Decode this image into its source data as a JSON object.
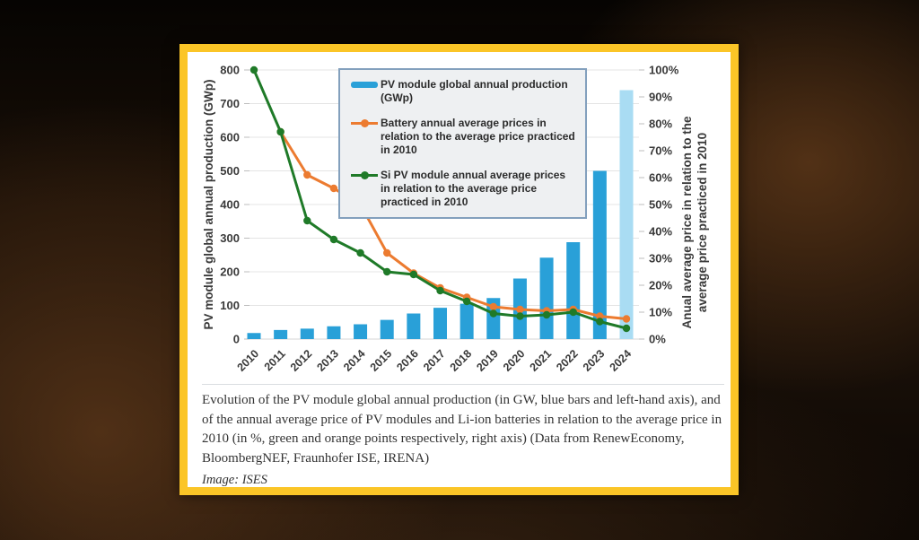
{
  "chart_data": {
    "type": "bar+line",
    "x": [
      "2010",
      "2011",
      "2012",
      "2013",
      "2014",
      "2015",
      "2016",
      "2017",
      "2018",
      "2019",
      "2020",
      "2021",
      "2022",
      "2023",
      "2024"
    ],
    "series": [
      {
        "name": "PV module global annual production (GWp)",
        "type": "bar",
        "axis": "left",
        "color": "#29a0d8",
        "last_value_color": "#a9dcf3",
        "values": [
          18,
          27,
          31,
          38,
          44,
          57,
          76,
          93,
          105,
          122,
          180,
          242,
          288,
          500,
          740
        ]
      },
      {
        "name": "Battery annual average prices in relation to the average price practiced in 2010",
        "type": "line",
        "axis": "right",
        "color": "#ec7b30",
        "values": [
          null,
          77,
          61,
          56,
          50,
          32,
          24.5,
          19,
          15.5,
          12,
          11,
          10.5,
          11,
          8.5,
          7.5
        ]
      },
      {
        "name": "Si PV module annual average prices in relation to the average price practiced in 2010",
        "type": "line",
        "axis": "right",
        "color": "#1f7a28",
        "values": [
          100,
          77,
          44,
          37,
          32,
          25,
          24,
          18,
          14,
          9.5,
          8.5,
          9,
          10,
          6.5,
          4
        ]
      }
    ],
    "left_axis": {
      "label": "PV module global annual production (GWp)",
      "min": 0,
      "max": 800,
      "step": 100,
      "ticks": [
        "0",
        "100",
        "200",
        "300",
        "400",
        "500",
        "600",
        "700",
        "800"
      ]
    },
    "right_axis": {
      "label_line1": "Anual average price in relation to the",
      "label_line2": "average price practiced in 2010",
      "min": 0,
      "max": 100,
      "step": 10,
      "ticks": [
        "0%",
        "10%",
        "20%",
        "30%",
        "40%",
        "50%",
        "60%",
        "70%",
        "80%",
        "90%",
        "100%"
      ]
    },
    "grid": true,
    "legend_position": "inside-top-center"
  },
  "caption": {
    "text": "Evolution of the PV module global annual production (in GW, blue bars and left-hand axis), and of the annual average price of PV modules and Li-ion batteries in relation to the average price in 2010 (in %, green and orange points respectively, right axis) (Data from RenewEconomy, BloombergNEF, Fraunhofer ISE, IRENA)",
    "credit": "Image: ISES"
  },
  "colors": {
    "card_border": "#fbc527",
    "bar_blue": "#29a0d8",
    "bar_light_blue": "#a9dcf3",
    "battery_orange": "#ec7b30",
    "si_green": "#1f7a28",
    "gridline": "#e4e4e4",
    "legend_bg": "#eef0f2",
    "legend_border": "#83a0bd"
  }
}
